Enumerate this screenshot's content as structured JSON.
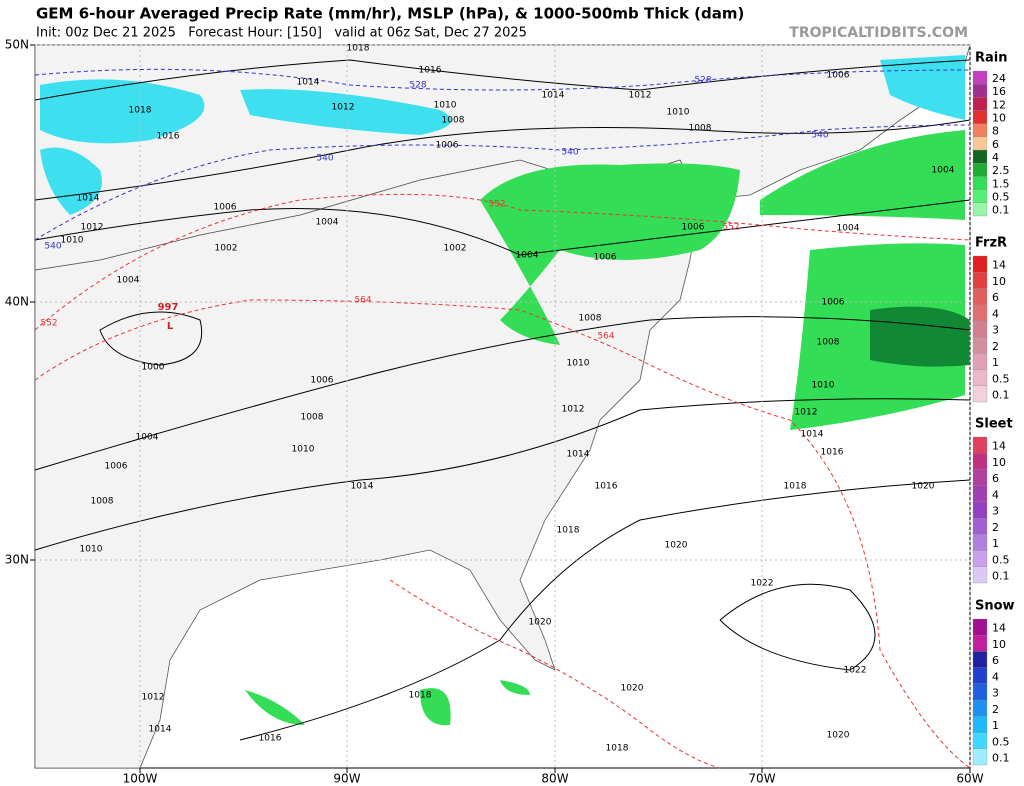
{
  "header": {
    "title": "GEM 6-hour Averaged Precip Rate (mm/hr), MSLP (hPa), & 1000-500mb Thick (dam)",
    "subtitle": "Init: 00z Dec 21 2025   Forecast Hour: [150]   valid at 06z Sat, Dec 27 2025",
    "credit": "TROPICALTIDBITS.COM"
  },
  "map": {
    "lat_labels": [
      "50N",
      "40N",
      "30N"
    ],
    "lon_labels": [
      "100W",
      "90W",
      "80W",
      "70W",
      "60W"
    ],
    "low": {
      "pressure": "997",
      "symbol": "L"
    },
    "isobar_labels": [
      "1018",
      "1016",
      "1014",
      "1006",
      "1012",
      "1014",
      "1010",
      "1012",
      "1018",
      "1010",
      "1008",
      "1008",
      "1016",
      "1006",
      "1004",
      "1014",
      "1006",
      "1004",
      "1012",
      "1004",
      "1010",
      "1002",
      "1002",
      "1004",
      "1006",
      "1006",
      "1004",
      "1006",
      "1008",
      "1008",
      "1010",
      "1000",
      "1006",
      "1010",
      "1012",
      "1008",
      "1012",
      "1004",
      "1014",
      "1010",
      "1016",
      "1014",
      "1006",
      "1014",
      "1016",
      "1018",
      "1020",
      "1008",
      "1018",
      "1020",
      "1010",
      "1022",
      "1020",
      "1022",
      "1020",
      "1012",
      "1018",
      "1014",
      "1016",
      "1020",
      "1018"
    ],
    "thickness_labels": [
      "528",
      "528",
      "540",
      "540",
      "540",
      "540",
      "552",
      "552",
      "552",
      "564",
      "564"
    ]
  },
  "legend": [
    {
      "title": "Rain",
      "labels": [
        "24",
        "16",
        "12",
        "10",
        "8",
        "6",
        "4",
        "2.5",
        "1.5",
        "0.5",
        "0.1"
      ]
    },
    {
      "title": "FrzR",
      "labels": [
        "14",
        "10",
        "6",
        "4",
        "3",
        "2",
        "1",
        "0.5",
        "0.1"
      ]
    },
    {
      "title": "Sleet",
      "labels": [
        "14",
        "10",
        "6",
        "4",
        "3",
        "2",
        "1",
        "0.5",
        "0.1"
      ]
    },
    {
      "title": "Snow",
      "labels": [
        "14",
        "10",
        "6",
        "4",
        "3",
        "2",
        "1",
        "0.5",
        "0.1"
      ]
    }
  ]
}
